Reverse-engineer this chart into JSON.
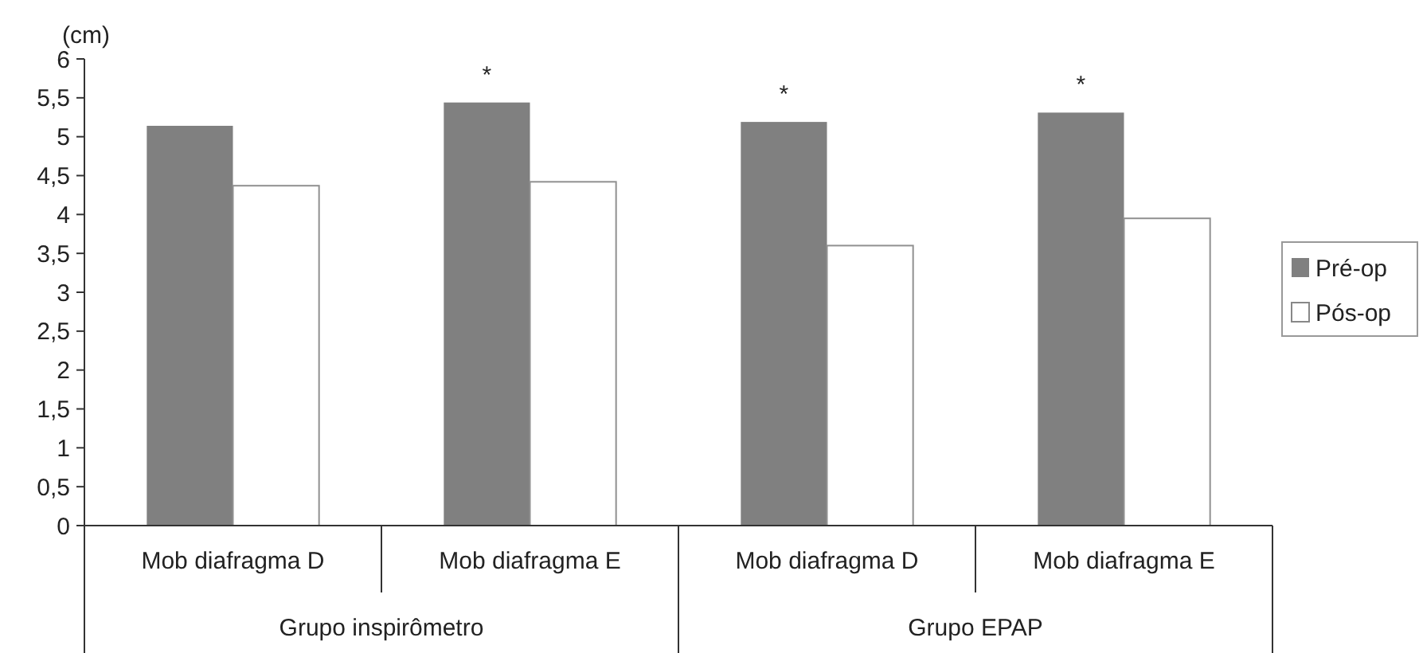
{
  "chart_data": {
    "type": "bar",
    "ylabel": "(cm)",
    "categories": [
      "Mob diafragma D",
      "Mob diafragma E",
      "Mob diafragma D",
      "Mob diafragma E"
    ],
    "series": [
      {
        "name": "Pré-op",
        "color": "#808080",
        "values": [
          5.14,
          5.44,
          5.19,
          5.31
        ],
        "value_labels": [
          null,
          "*",
          "*",
          "*"
        ]
      },
      {
        "name": "Pós-op",
        "color": "#ffffff",
        "values": [
          4.37,
          4.42,
          3.6,
          3.95
        ]
      }
    ],
    "ylim": [
      0,
      6
    ],
    "yticks": [
      0,
      {
        "value": 0.5,
        "label": "0,5"
      },
      1,
      {
        "value": 1.5,
        "label": "1,5"
      },
      2,
      {
        "value": 2.5,
        "label": "2,5"
      },
      3,
      {
        "value": 3.5,
        "label": "3,5"
      },
      4,
      {
        "value": 4.5,
        "label": "4,5"
      },
      5,
      {
        "value": 5.5,
        "label": "5,5"
      },
      6
    ],
    "annotations": [
      "Grupo inspirômetro",
      "Grupo EPAP"
    ],
    "legend": "right",
    "grid": false
  }
}
